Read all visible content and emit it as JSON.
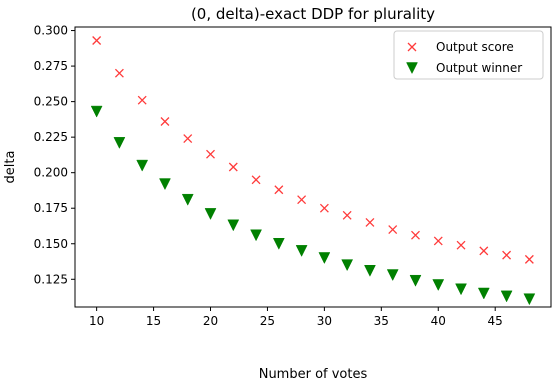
{
  "chart_data": {
    "type": "scatter",
    "title": "(0, delta)-exact DDP for plurality",
    "xlabel": "Number of votes",
    "ylabel": "delta",
    "xlim": [
      8.1,
      49.9
    ],
    "ylim": [
      0.1055,
      0.3025
    ],
    "xticks": [
      10,
      15,
      20,
      25,
      30,
      35,
      40,
      45
    ],
    "xtick_labels": [
      "10",
      "15",
      "20",
      "25",
      "30",
      "35",
      "40",
      "45"
    ],
    "yticks": [
      0.125,
      0.15,
      0.175,
      0.2,
      0.225,
      0.25,
      0.275,
      0.3
    ],
    "ytick_labels": [
      "0.125",
      "0.150",
      "0.175",
      "0.200",
      "0.225",
      "0.250",
      "0.275",
      "0.300"
    ],
    "grid": false,
    "legend_position": "top-right",
    "series": [
      {
        "name": "Output score",
        "marker": "x",
        "color": "#ff3b3b",
        "x": [
          10,
          12,
          14,
          16,
          18,
          20,
          22,
          24,
          26,
          28,
          30,
          32,
          34,
          36,
          38,
          40,
          42,
          44,
          46,
          48
        ],
        "y": [
          0.293,
          0.27,
          0.251,
          0.236,
          0.224,
          0.213,
          0.204,
          0.195,
          0.188,
          0.181,
          0.175,
          0.17,
          0.165,
          0.16,
          0.156,
          0.152,
          0.149,
          0.145,
          0.142,
          0.139
        ]
      },
      {
        "name": "Output winner",
        "marker": "triangle-down",
        "color": "#008000",
        "x": [
          10,
          12,
          14,
          16,
          18,
          20,
          22,
          24,
          26,
          28,
          30,
          32,
          34,
          36,
          38,
          40,
          42,
          44,
          46,
          48
        ],
        "y": [
          0.243,
          0.221,
          0.205,
          0.192,
          0.181,
          0.171,
          0.163,
          0.156,
          0.15,
          0.145,
          0.14,
          0.135,
          0.131,
          0.128,
          0.124,
          0.121,
          0.118,
          0.115,
          0.113,
          0.111
        ]
      }
    ]
  }
}
